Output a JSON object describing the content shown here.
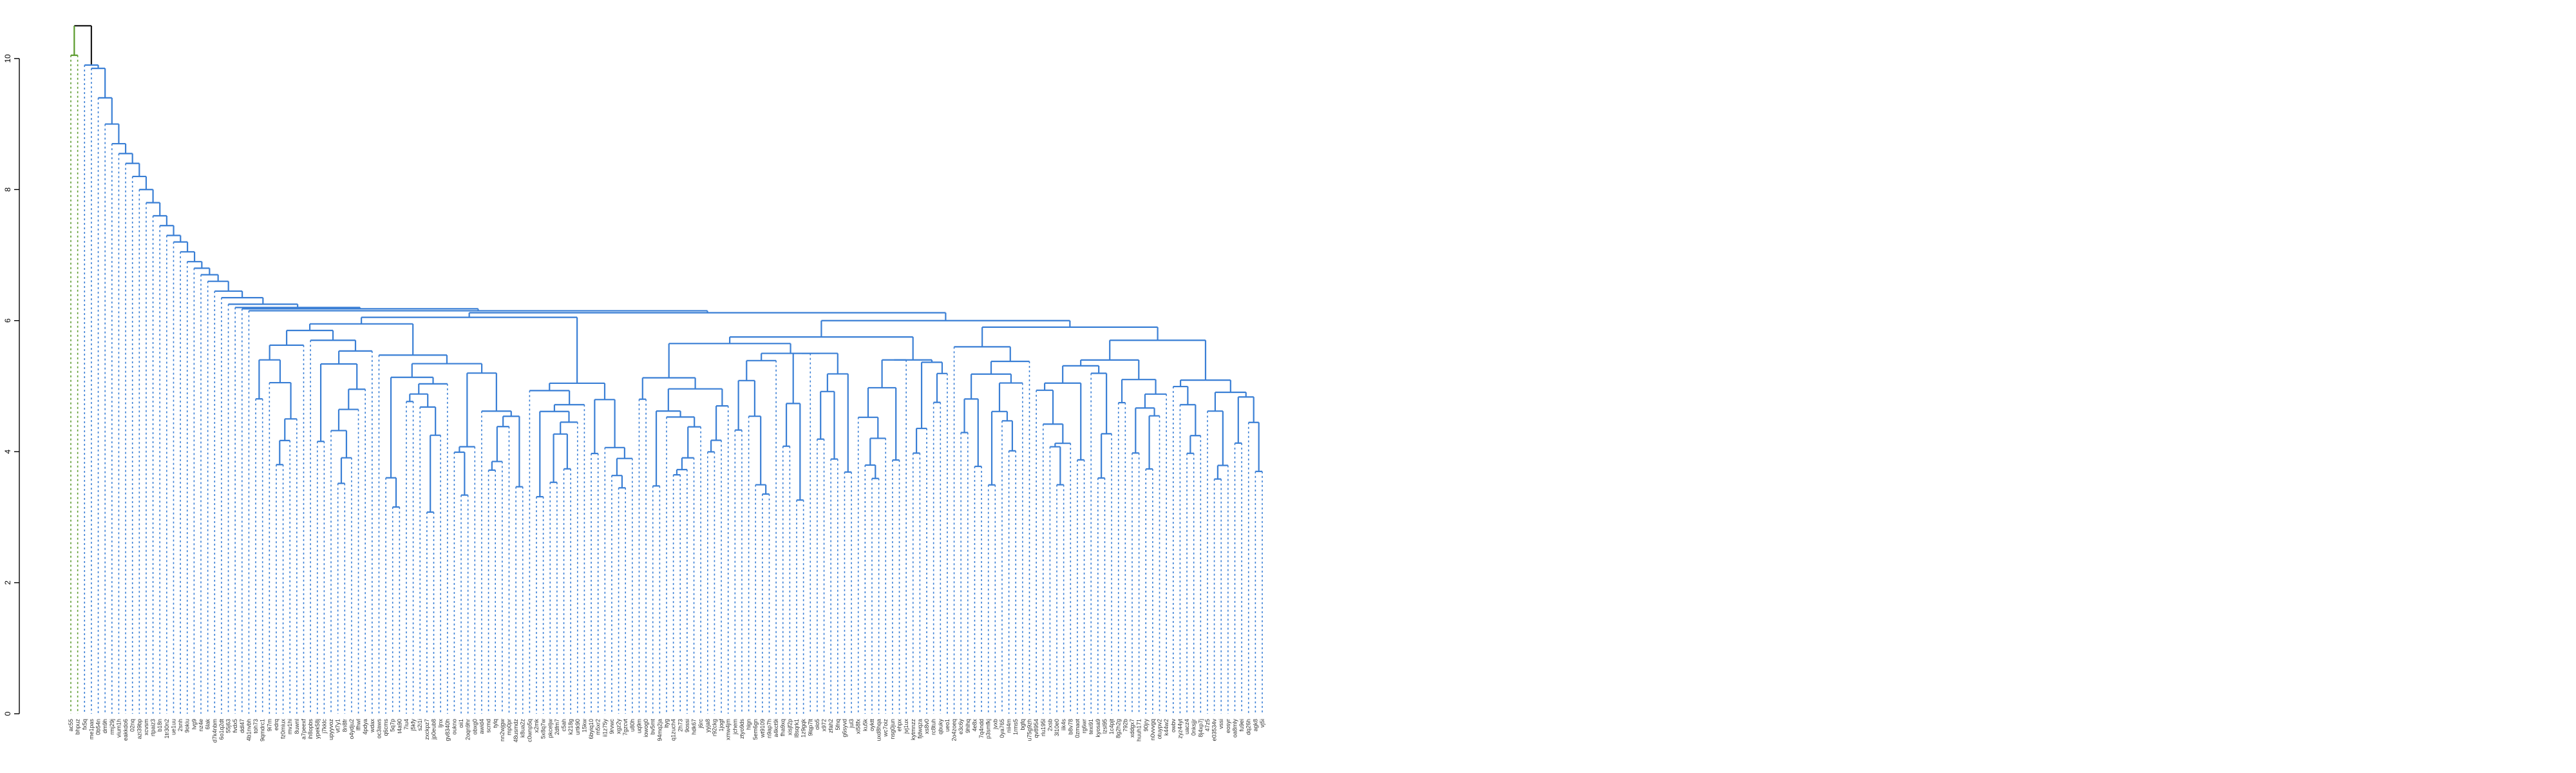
{
  "chart_data": {
    "type": "dendrogram",
    "title": "",
    "xlabel": "",
    "ylabel": "",
    "ylim": [
      0,
      10.5
    ],
    "y_ticks": [
      "0",
      "2",
      "4",
      "6",
      "8",
      "10"
    ],
    "colors": {
      "main": "#3a7fd5",
      "outgroup": "#5a9a2c",
      "root": "#1a1a1a"
    },
    "leaf_count": 180,
    "root_height": 10.5,
    "outgroup_leaves": 2,
    "labels_note_shown_as_unreadable_tiny_text": true
  }
}
